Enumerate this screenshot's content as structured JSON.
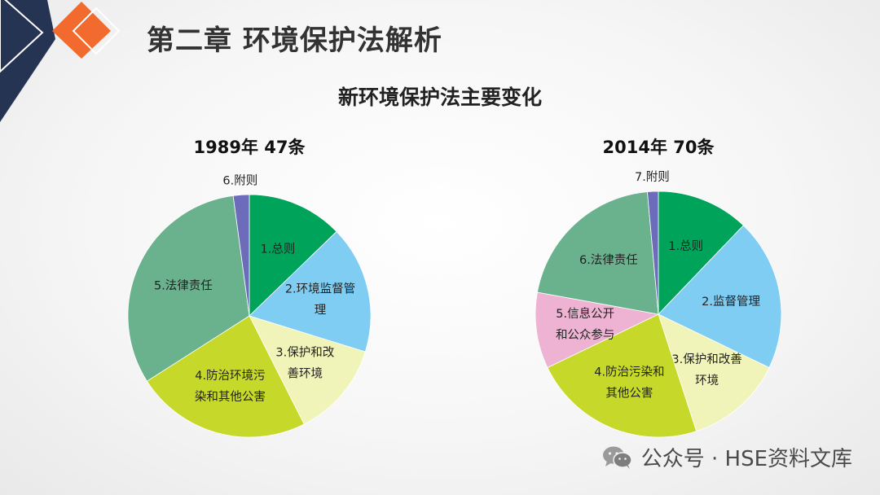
{
  "header": {
    "title": "第二章 环境保护法解析"
  },
  "main": {
    "title": "新环境保护法主要变化"
  },
  "watermark": {
    "text": "公众号 · HSE资料文库",
    "icon": "wechat-icon"
  },
  "colors": {
    "slice1": "#00a35a",
    "slice2": "#80cdf3",
    "slice3": "#f0f4b8",
    "slice4": "#c6d92a",
    "slice_info": "#eeb3d3",
    "slice_liability": "#6ab18d",
    "slice_appendix": "#6c6cbb",
    "deco_navy": "#253453",
    "deco_orange": "#f26a2d"
  },
  "chart_data": [
    {
      "type": "pie",
      "title": "1989年 47条",
      "categories": [
        "1.总则",
        "2.环境监督管理",
        "3.保护和改善环境",
        "4.防治环境污染和其他公害",
        "5.法律责任",
        "6.附则"
      ],
      "label_lines": [
        [
          "1.总则"
        ],
        [
          "2.环境监督管",
          "理"
        ],
        [
          "3.保护和改",
          "善环境"
        ],
        [
          "4.防治环境污",
          "染和其他公害"
        ],
        [
          "5.法律责任"
        ],
        [
          "6.附则"
        ]
      ],
      "values": [
        6,
        8,
        6,
        11,
        15,
        1
      ],
      "colors": [
        "#00a35a",
        "#80cdf3",
        "#f0f4b8",
        "#c6d92a",
        "#6ab18d",
        "#6c6cbb"
      ]
    },
    {
      "type": "pie",
      "title": "2014年 70条",
      "categories": [
        "1.总则",
        "2.监督管理",
        "3.保护和改善环境",
        "4.防治污染和其他公害",
        "5.信息公开和公众参与",
        "6.法律责任",
        "7.附则"
      ],
      "label_lines": [
        [
          "1.总则"
        ],
        [
          "2.监督管理"
        ],
        [
          "3.保护和改善",
          "环境"
        ],
        [
          "4.防治污染和",
          "其他公害"
        ],
        [
          "5.信息公开",
          "和公众参与"
        ],
        [
          "6.法律责任"
        ],
        [
          "7.附则"
        ]
      ],
      "values": [
        8.5,
        14,
        9,
        16,
        7,
        14.5,
        1
      ],
      "colors": [
        "#00a35a",
        "#80cdf3",
        "#f0f4b8",
        "#c6d92a",
        "#eeb3d3",
        "#6ab18d",
        "#6c6cbb"
      ]
    }
  ]
}
